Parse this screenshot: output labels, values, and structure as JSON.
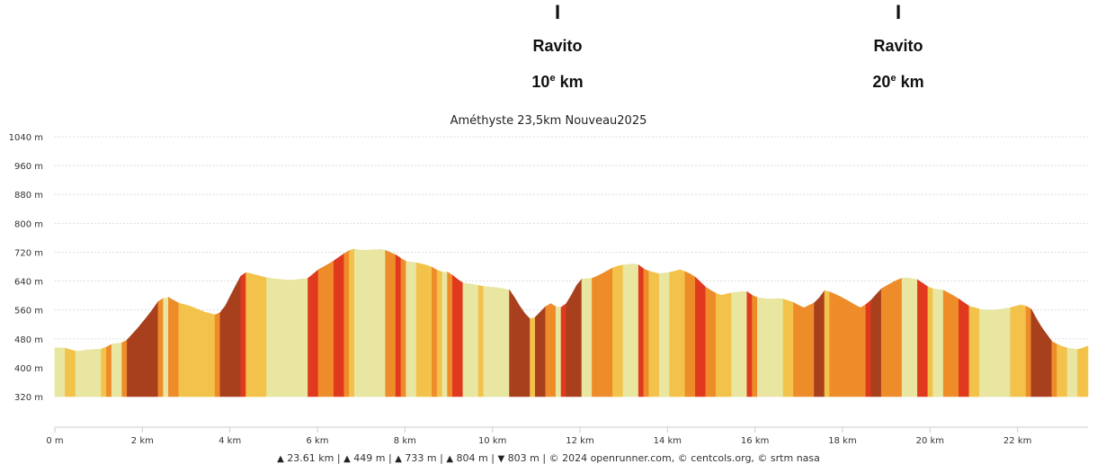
{
  "markers": [
    {
      "bar": "I",
      "label": "Ravito",
      "km_num": "10",
      "km_sup": "e",
      "km_unit": "km",
      "x_km": 11.5
    },
    {
      "bar": "I",
      "label": "Ravito",
      "km_num": "20",
      "km_sup": "e",
      "km_unit": "km",
      "x_km": 19.15
    }
  ],
  "chart_data": {
    "type": "area",
    "title": "Améthyste 23,5km Nouveau2025",
    "xlabel": "",
    "ylabel": "",
    "xlim": [
      0,
      23.61
    ],
    "ylim": [
      320,
      1040
    ],
    "x_unit": "km",
    "y_unit": "m",
    "x_ticks": [
      0,
      2,
      4,
      6,
      8,
      10,
      12,
      14,
      16,
      18,
      20,
      22
    ],
    "x_tick_labels": [
      "0 m",
      "2 km",
      "4 km",
      "6 km",
      "8 km",
      "10 km",
      "12 km",
      "14 km",
      "16 km",
      "18 km",
      "20 km",
      "22 km"
    ],
    "y_ticks": [
      320,
      400,
      480,
      560,
      640,
      720,
      800,
      880,
      960,
      1040
    ],
    "y_tick_labels": [
      "320 m",
      "400 m",
      "480 m",
      "560 m",
      "640 m",
      "720 m",
      "800 m",
      "880 m",
      "960 m",
      "1040 m"
    ],
    "grid": true,
    "series": [
      {
        "x": [
          0,
          0.2,
          0.5,
          0.8,
          1.1,
          1.3,
          1.6,
          1.9,
          2.2,
          2.4,
          2.6,
          2.8,
          3.1,
          3.4,
          3.7,
          3.85,
          4.1,
          4.3,
          4.5,
          4.8,
          5.1,
          5.4,
          5.8,
          6.0,
          6.3,
          6.6,
          6.8,
          7.0,
          7.5,
          7.8,
          8.0,
          8.3,
          8.6,
          8.8,
          9.0,
          9.3,
          9.6,
          9.8,
          10.1,
          10.4,
          10.7,
          10.9,
          11.1,
          11.3,
          11.5,
          11.65,
          11.8,
          12.0,
          12.3,
          12.5,
          12.8,
          13.0,
          13.3,
          13.5,
          13.8,
          14.1,
          14.3,
          14.6,
          14.9,
          15.2,
          15.5,
          15.8,
          16.0,
          16.3,
          16.6,
          16.9,
          17.1,
          17.4,
          17.6,
          17.9,
          18.2,
          18.4,
          18.6,
          18.9,
          19.2,
          19.4,
          19.7,
          20.0,
          20.3,
          20.6,
          20.9,
          21.2,
          21.5,
          21.8,
          22.1,
          22.3,
          22.5,
          22.8,
          23.1,
          23.4,
          23.61
        ],
        "y": [
          455,
          455,
          445,
          450,
          452,
          465,
          470,
          510,
          555,
          590,
          595,
          580,
          570,
          555,
          545,
          560,
          620,
          665,
          660,
          650,
          645,
          642,
          648,
          670,
          690,
          715,
          730,
          725,
          728,
          712,
          695,
          690,
          680,
          665,
          665,
          635,
          630,
          625,
          622,
          615,
          555,
          530,
          555,
          580,
          565,
          570,
          600,
          645,
          648,
          660,
          680,
          685,
          688,
          670,
          660,
          665,
          672,
          655,
          620,
          600,
          608,
          612,
          595,
          590,
          592,
          580,
          565,
          582,
          615,
          600,
          580,
          565,
          580,
          620,
          640,
          650,
          645,
          620,
          615,
          595,
          570,
          560,
          560,
          565,
          575,
          565,
          520,
          470,
          455,
          450,
          460
        ]
      }
    ],
    "slope_colors": {
      "flat": "#E8E6A0",
      "gentle": "#F3C24A",
      "moderate": "#EE8C2A",
      "steep": "#E0391E",
      "very_steep": "#A8401E"
    },
    "grid_color": "#dddddd",
    "axis_color": "#cccccc"
  },
  "footer": {
    "distance": "23.61 km",
    "elevation_gain": "449 m",
    "max_altitude": "733 m",
    "positive": "804 m",
    "negative": "803 m",
    "credits": "© 2024 openrunner.com, © centcols.org, © srtm nasa"
  }
}
